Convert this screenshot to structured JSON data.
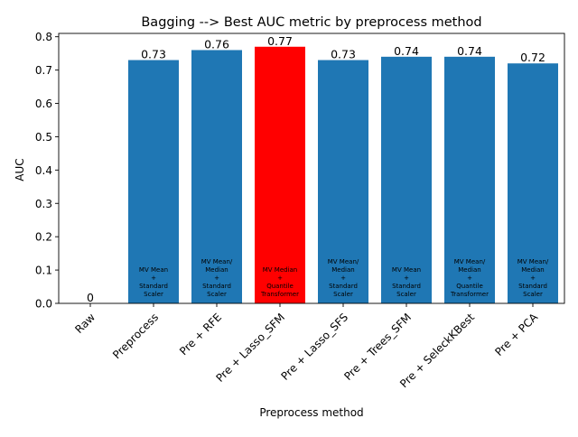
{
  "chart_data": {
    "type": "bar",
    "title": "Bagging --> Best AUC metric by preprocess method",
    "xlabel": "Preprocess method",
    "ylabel": "AUC",
    "ylim": [
      0,
      0.81
    ],
    "yticks": [
      "0.0",
      "0.1",
      "0.2",
      "0.3",
      "0.4",
      "0.5",
      "0.6",
      "0.7",
      "0.8"
    ],
    "ytick_values": [
      0,
      0.1,
      0.2,
      0.3,
      0.4,
      0.5,
      0.6,
      0.7,
      0.8
    ],
    "grid": false,
    "categories": [
      "Raw",
      "Preprocess",
      "Pre + RFE",
      "Pre + Lasso_SFM",
      "Pre + Lasso_SFS",
      "Pre + Trees_SFM",
      "Pre + SeleckKBest",
      "Pre + PCA"
    ],
    "values": [
      0,
      0.73,
      0.76,
      0.77,
      0.73,
      0.74,
      0.74,
      0.72
    ],
    "value_labels": [
      "0",
      "0.73",
      "0.76",
      "0.77",
      "0.73",
      "0.74",
      "0.74",
      "0.72"
    ],
    "bar_annotations": [
      [],
      [
        "MV Mean",
        "+",
        "Standard",
        "Scaler"
      ],
      [
        "MV Mean/",
        "Median",
        "+",
        "Standard",
        "Scaler"
      ],
      [
        "MV Median",
        "+",
        "Quantile",
        "Transformer"
      ],
      [
        "MV Mean/",
        "Median",
        "+",
        "Standard",
        "Scaler"
      ],
      [
        "MV Mean",
        "+",
        "Standard",
        "Scaler"
      ],
      [
        "MV Mean/",
        "Median",
        "+",
        "Quantile",
        "Transformer"
      ],
      [
        "MV Mean/",
        "Median",
        "+",
        "Standard",
        "Scaler"
      ]
    ],
    "highlight_index": 3,
    "colors": {
      "bar": "#1f77b4",
      "highlight": "#ff0000",
      "axis": "#000000",
      "text": "#000000"
    }
  }
}
